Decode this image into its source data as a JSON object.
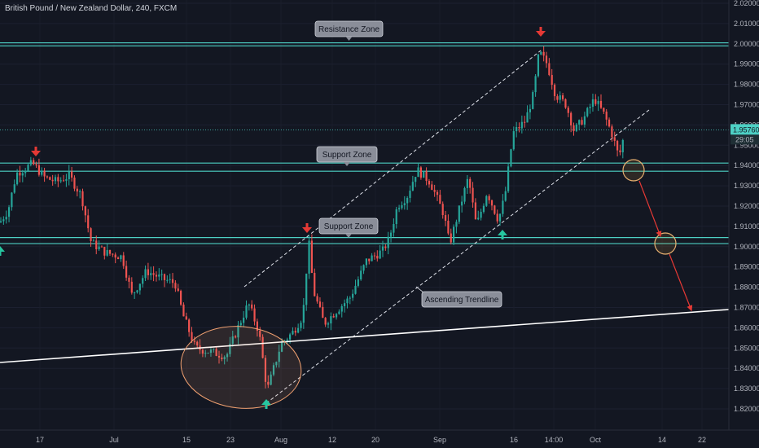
{
  "title": "British Pound / New Zealand Dollar, 240, FXCM",
  "chart_data": {
    "type": "candlestick",
    "symbol": "GBPNZD",
    "timeframe": "240",
    "ylim": [
      1.815,
      2.025
    ],
    "y_ticks": [
      "2.02000",
      "2.01000",
      "2.00000",
      "1.99000",
      "1.98000",
      "1.97000",
      "1.96000",
      "1.95000",
      "1.94000",
      "1.93000",
      "1.92000",
      "1.91000",
      "1.90000",
      "1.89000",
      "1.88000",
      "1.87000",
      "1.86000",
      "1.85000",
      "1.84000",
      "1.83000",
      "1.82000"
    ],
    "x_ticks": [
      "17",
      "Jul",
      "15",
      "23",
      "Aug",
      "12",
      "20",
      "Sep",
      "16",
      "14:00",
      "Oct",
      "14",
      "22"
    ],
    "last_price": "1.95760",
    "countdown": "29:05",
    "price_path": [
      [
        0,
        1.912
      ],
      [
        10,
        1.918
      ],
      [
        20,
        1.936
      ],
      [
        40,
        1.941
      ],
      [
        55,
        1.934
      ],
      [
        70,
        1.932
      ],
      [
        85,
        1.935
      ],
      [
        100,
        1.925
      ],
      [
        112,
        1.902
      ],
      [
        130,
        1.897
      ],
      [
        150,
        1.895
      ],
      [
        162,
        1.876
      ],
      [
        180,
        1.888
      ],
      [
        200,
        1.884
      ],
      [
        215,
        1.882
      ],
      [
        225,
        1.866
      ],
      [
        240,
        1.85
      ],
      [
        260,
        1.848
      ],
      [
        278,
        1.846
      ],
      [
        290,
        1.858
      ],
      [
        305,
        1.872
      ],
      [
        318,
        1.858
      ],
      [
        328,
        1.829
      ],
      [
        345,
        1.852
      ],
      [
        360,
        1.858
      ],
      [
        372,
        1.866
      ],
      [
        379,
        1.903
      ],
      [
        385,
        1.878
      ],
      [
        398,
        1.862
      ],
      [
        412,
        1.868
      ],
      [
        430,
        1.875
      ],
      [
        450,
        1.893
      ],
      [
        470,
        1.898
      ],
      [
        478,
        1.904
      ],
      [
        488,
        1.92
      ],
      [
        500,
        1.925
      ],
      [
        512,
        1.938
      ],
      [
        528,
        1.932
      ],
      [
        545,
        1.916
      ],
      [
        552,
        1.901
      ],
      [
        565,
        1.92
      ],
      [
        575,
        1.934
      ],
      [
        585,
        1.91
      ],
      [
        598,
        1.927
      ],
      [
        612,
        1.913
      ],
      [
        620,
        1.925
      ],
      [
        630,
        1.956
      ],
      [
        645,
        1.962
      ],
      [
        655,
        1.975
      ],
      [
        662,
        1.996
      ],
      [
        672,
        1.99
      ],
      [
        682,
        1.975
      ],
      [
        695,
        1.97
      ],
      [
        705,
        1.957
      ],
      [
        718,
        1.964
      ],
      [
        730,
        1.973
      ],
      [
        742,
        1.965
      ],
      [
        752,
        1.955
      ],
      [
        760,
        1.944
      ],
      [
        767,
        1.956
      ]
    ],
    "zones": [
      {
        "name": "Resistance Zone",
        "y_top": 2.0005,
        "y_bottom": 1.999
      },
      {
        "name": "Support Zone",
        "y_top": 1.9412,
        "y_bottom": 1.9372
      },
      {
        "name": "Support Zone",
        "y_top": 1.9045,
        "y_bottom": 1.9015
      }
    ],
    "annotations": {
      "resistance_label": "Resistance Zone",
      "support_label_1": "Support Zone",
      "support_label_2": "Support Zone",
      "trendline_label": "Ascending Trendline"
    },
    "colors": {
      "background": "#131722",
      "up": "#26a69a",
      "down": "#ef5350",
      "zone": "#4dd0c4",
      "trendline": "#ffffff",
      "ellipse": "#f0a070",
      "arrow_down": "#e53935",
      "arrow_up": "#26c6a0"
    }
  }
}
